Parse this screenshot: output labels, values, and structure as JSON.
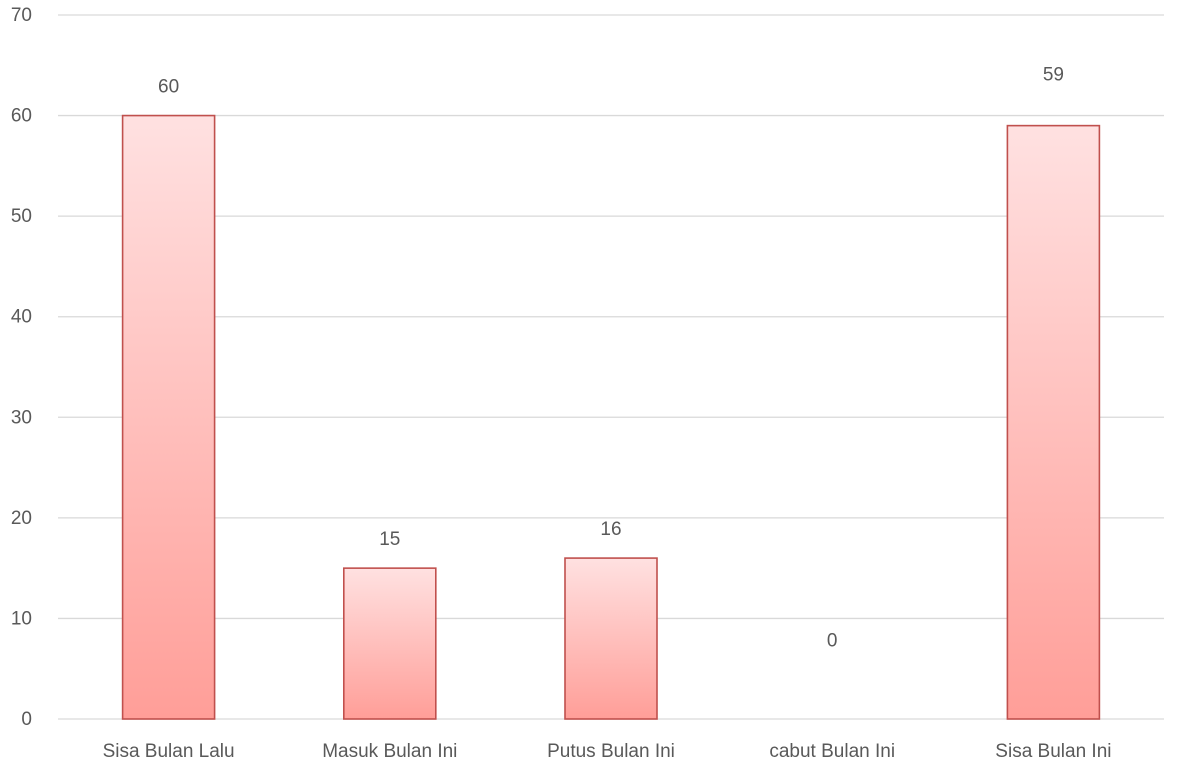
{
  "chart_data": {
    "type": "bar",
    "categories": [
      "Sisa Bulan Lalu",
      "Masuk Bulan Ini",
      "Putus Bulan Ini",
      "cabut Bulan Ini",
      "Sisa Bulan Ini"
    ],
    "values": [
      60,
      15,
      16,
      0,
      59
    ],
    "data_labels": [
      "60",
      "15",
      "16",
      "0",
      "59"
    ],
    "ylim": [
      0,
      70
    ],
    "yticks": [
      0,
      10,
      20,
      30,
      40,
      50,
      60,
      70
    ],
    "ytick_labels": [
      "0",
      "10",
      "20",
      "30",
      "40",
      "50",
      "60",
      "70"
    ],
    "title": "",
    "xlabel": "",
    "ylabel": "",
    "grid": true,
    "legend": false,
    "colors": {
      "bar_top": "#ffe1e1",
      "bar_bottom": "#ff9e98",
      "bar_border": "#c0504d",
      "grid": "#d9d9d9",
      "text": "#595959"
    }
  }
}
